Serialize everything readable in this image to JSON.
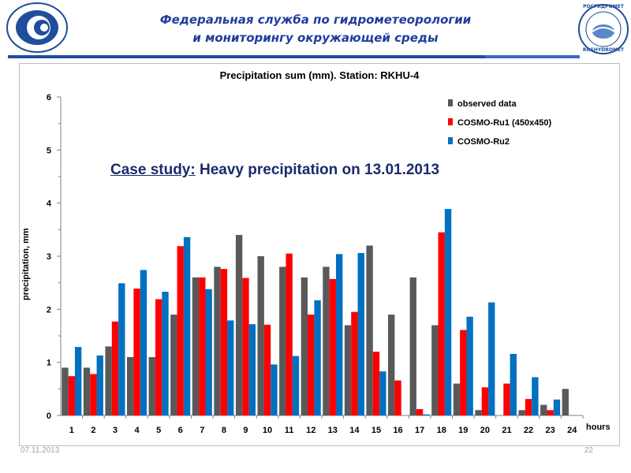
{
  "header": {
    "line1": "Федеральная служба по гидрометеорологии",
    "line2": "и мониторингу окружающей среды"
  },
  "logo_right": {
    "text_top": "РОСГИДРОМЕТ",
    "text_bottom": "ROSHYDROMET"
  },
  "annotation": {
    "prefix": "Case study:",
    "text": " Heavy precipitation on 13.01.2013"
  },
  "footer": {
    "date": "07.11.2013",
    "page": "22"
  },
  "colors": {
    "observed": "#595959",
    "cosmo_ru1": "#ff0000",
    "cosmo_ru2": "#0070c0",
    "header_blue": "#1f3d9c"
  },
  "chart_data": {
    "type": "bar",
    "title": "Precipitation sum (mm). Station: RKHU-4",
    "xlabel": "hours",
    "ylabel": "precipitation, mm",
    "ylim": [
      0,
      6
    ],
    "yticks": [
      "0",
      "1",
      "2",
      "3",
      "4",
      "5",
      "6"
    ],
    "categories": [
      "1",
      "2",
      "3",
      "4",
      "5",
      "6",
      "7",
      "8",
      "9",
      "10",
      "11",
      "12",
      "13",
      "14",
      "15",
      "16",
      "17",
      "18",
      "19",
      "20",
      "21",
      "22",
      "23",
      "24"
    ],
    "legend_position": "top-right",
    "series": [
      {
        "name": "observed data",
        "color": "#595959",
        "values": [
          0.9,
          0.9,
          1.3,
          1.1,
          1.1,
          1.9,
          2.6,
          2.8,
          3.4,
          3.0,
          2.8,
          2.6,
          2.8,
          1.7,
          3.2,
          1.9,
          2.6,
          1.7,
          0.6,
          0.1,
          0.0,
          0.1,
          0.2,
          0.5
        ]
      },
      {
        "name": "COSMO-Ru1  (450x450)",
        "color": "#ff0000",
        "values": [
          0.74,
          0.78,
          1.77,
          2.39,
          2.19,
          3.19,
          2.6,
          2.76,
          2.59,
          1.71,
          3.05,
          1.9,
          2.57,
          1.95,
          1.2,
          0.66,
          0.12,
          3.45,
          1.61,
          0.53,
          0.6,
          0.31,
          0.1,
          0.0
        ]
      },
      {
        "name": "COSMO-Ru2",
        "color": "#0070c0",
        "values": [
          1.29,
          1.13,
          2.49,
          2.74,
          2.33,
          3.36,
          2.38,
          1.79,
          1.72,
          0.96,
          1.12,
          2.17,
          3.04,
          3.06,
          0.83,
          0.0,
          0.02,
          3.89,
          1.86,
          2.13,
          1.16,
          0.72,
          0.3,
          0.0
        ]
      }
    ]
  }
}
